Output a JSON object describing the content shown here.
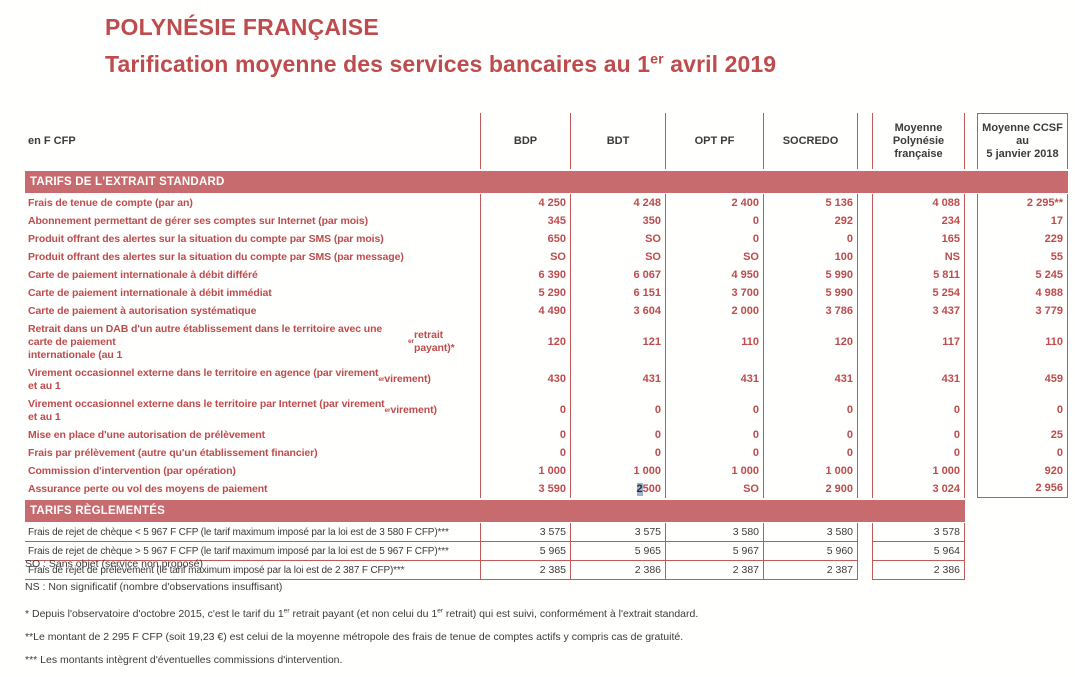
{
  "colors": {
    "accent_red": "#BE4B4D",
    "border_red": "#C4595C",
    "band_background": "#C76B6E",
    "dark_text": "#3B3B3B",
    "selection_background": "#9FB3CB",
    "selection_text": "#2B2F3A"
  },
  "title": {
    "line1": "POLYNÉSIE FRANÇAISE",
    "line2": "Tarification moyenne des services bancaires au 1{er} avril 2019"
  },
  "table": {
    "unit_label": "en F CFP",
    "bank_columns": [
      "BDP",
      "BDT",
      "OPT PF",
      "SOCREDO"
    ],
    "avg_header": "Moyenne\nPolynésie\nfrançaise",
    "ccsf_header": "Moyenne CCSF au\n5 janvier 2018",
    "sections": [
      {
        "header": "TARIFS DE L'EXTRAIT STANDARD",
        "rows": [
          {
            "label": "Frais de tenue de compte (par an)",
            "values": [
              "4 250",
              "4 248",
              "2 400",
              "5 136"
            ],
            "avg": "4 088",
            "ccsf": "2 295**"
          },
          {
            "label": "Abonnement permettant de gérer ses comptes sur Internet (par mois)",
            "values": [
              "345",
              "350",
              "0",
              "292"
            ],
            "avg": "234",
            "ccsf": "17"
          },
          {
            "label": "Produit offrant des alertes sur la situation du compte par SMS (par mois)",
            "values": [
              "650",
              "SO",
              "0",
              "0"
            ],
            "avg": "165",
            "ccsf": "229"
          },
          {
            "label": "Produit offrant des alertes sur la situation du compte par SMS (par message)",
            "values": [
              "SO",
              "SO",
              "SO",
              "100"
            ],
            "avg": "NS",
            "ccsf": "55"
          },
          {
            "label": "Carte de paiement internationale à débit différé",
            "values": [
              "6 390",
              "6 067",
              "4 950",
              "5 990"
            ],
            "avg": "5 811",
            "ccsf": "5 245"
          },
          {
            "label": "Carte de paiement internationale à débit immédiat",
            "values": [
              "5 290",
              "6 151",
              "3 700",
              "5 990"
            ],
            "avg": "5 254",
            "ccsf": "4 988"
          },
          {
            "label": "Carte de paiement à autorisation systématique",
            "values": [
              "4 490",
              "3 604",
              "2 000",
              "3 786"
            ],
            "avg": "3 437",
            "ccsf": "3 779"
          },
          {
            "label": "Retrait dans un DAB d'un autre établissement dans le territoire avec une carte de paiement\ninternationale (au 1{er} retrait payant)*",
            "values": [
              "120",
              "121",
              "110",
              "120"
            ],
            "avg": "117",
            "ccsf": "110"
          },
          {
            "label": "Virement occasionnel externe dans le territoire en agence (par virement\net au 1{er} virement)",
            "values": [
              "430",
              "431",
              "431",
              "431"
            ],
            "avg": "431",
            "ccsf": "459"
          },
          {
            "label": "Virement occasionnel externe dans le territoire par Internet (par virement\net au 1{er} virement)",
            "values": [
              "0",
              "0",
              "0",
              "0"
            ],
            "avg": "0",
            "ccsf": "0"
          },
          {
            "label": "Mise en place d'une autorisation de prélèvement",
            "values": [
              "0",
              "0",
              "0",
              "0"
            ],
            "avg": "0",
            "ccsf": "25"
          },
          {
            "label": "Frais par prélèvement (autre qu'un établissement financier)",
            "values": [
              "0",
              "0",
              "0",
              "0"
            ],
            "avg": "0",
            "ccsf": "0"
          },
          {
            "label": "Commission d'intervention (par opération)",
            "values": [
              "1 000",
              "1 000",
              "1 000",
              "1 000"
            ],
            "avg": "1 000",
            "ccsf": "920"
          },
          {
            "label": "Assurance perte ou vol des moyens de paiement",
            "values": [
              "3 590",
              "[[2]] 500",
              "SO",
              "2 900"
            ],
            "avg": "3 024",
            "ccsf": "2 956"
          }
        ]
      },
      {
        "header": "TARIFS RÈGLEMENTÉS",
        "rows": [
          {
            "label": "Frais de rejet de chèque < 5 967 F CFP (le tarif maximum imposé par la loi est de 3 580 F CFP)***",
            "values": [
              "3 575",
              "3 575",
              "3 580",
              "3 580"
            ],
            "avg": "3 578",
            "ccsf": ""
          },
          {
            "label": "Frais de rejet de chèque > 5 967 F CFP (le tarif maximum imposé par la loi est de 5 967 F CFP)***",
            "values": [
              "5 965",
              "5 965",
              "5 967",
              "5 960"
            ],
            "avg": "5 964",
            "ccsf": ""
          },
          {
            "label": "Frais de rejet de prélèvement (le tarif maximum imposé par la loi est de 2 387 F CFP)***",
            "values": [
              "2 385",
              "2 386",
              "2 387",
              "2 387"
            ],
            "avg": "2 386",
            "ccsf": ""
          }
        ]
      }
    ]
  },
  "footnotes": [
    "SO : Sans objet (service non proposé)",
    "NS : Non significatif (nombre d'observations insuffisant)",
    "* Depuis l'observatoire d'octobre 2015, c'est le tarif du 1{er} retrait payant (et non celui du 1{er} retrait) qui est suivi, conformément à l'extrait standard.",
    "**Le montant de 2 295 F CFP (soit 19,23 €) est celui de la moyenne métropole des frais de tenue de comptes actifs y compris cas de gratuité.",
    "*** Les montants intègrent d'éventuelles commissions d'intervention."
  ]
}
